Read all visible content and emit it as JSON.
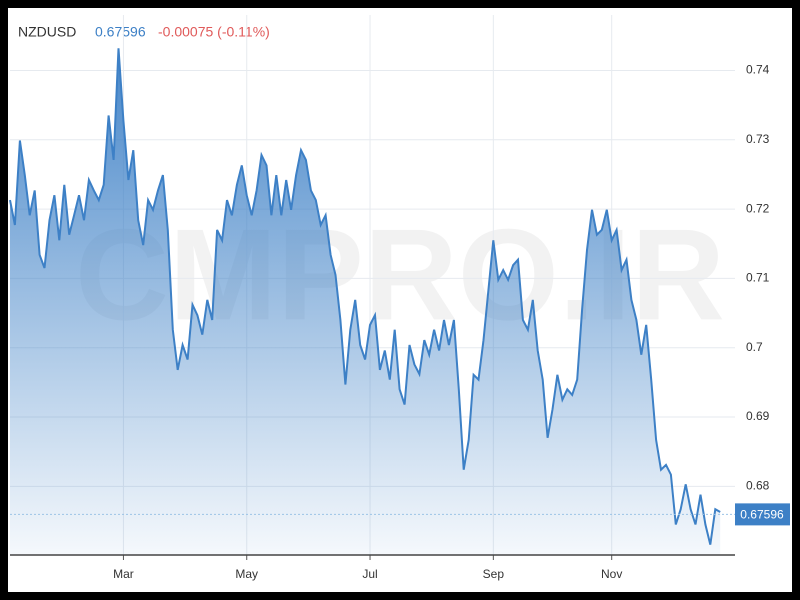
{
  "chart_data": {
    "type": "area",
    "symbol": "NZDUSD",
    "last_value": 0.67596,
    "change": "-0.00075 (-0.11%)",
    "watermark": "CMPRO.IR",
    "color": "#3d80c6",
    "grid": true,
    "x": [
      0,
      1,
      2,
      3,
      4,
      5,
      6,
      7,
      8,
      9,
      10,
      11,
      12,
      13,
      14,
      15,
      16,
      17,
      18,
      19,
      20,
      21,
      22,
      23,
      24,
      25,
      26,
      27,
      28,
      29,
      30,
      31,
      32,
      33,
      34,
      35,
      36,
      37,
      38,
      39,
      40,
      41,
      42,
      43,
      44,
      45,
      46,
      47,
      48,
      49,
      50,
      51,
      52,
      53,
      54,
      55,
      56,
      57,
      58,
      59,
      60,
      61,
      62,
      63,
      64,
      65,
      66,
      67,
      68,
      69,
      70,
      71,
      72,
      73,
      74,
      75,
      76,
      77,
      78,
      79,
      80,
      81,
      82,
      83,
      84,
      85,
      86,
      87,
      88,
      89,
      90,
      91,
      92,
      93,
      94,
      95,
      96,
      97,
      98,
      99,
      100,
      101,
      102,
      103,
      104,
      105,
      106,
      107,
      108,
      109,
      110,
      111,
      112,
      113,
      114,
      115,
      116,
      117,
      118,
      119,
      120,
      121,
      122,
      123,
      124,
      125,
      126,
      127,
      128,
      129,
      130,
      131,
      132,
      133,
      134,
      135,
      136,
      137,
      138,
      139,
      140,
      141,
      142,
      143,
      144
    ],
    "values": [
      0.7213,
      0.7177,
      0.7299,
      0.7249,
      0.7191,
      0.7227,
      0.7134,
      0.7115,
      0.7184,
      0.722,
      0.7155,
      0.7235,
      0.7163,
      0.7191,
      0.722,
      0.7184,
      0.7242,
      0.7227,
      0.7213,
      0.7235,
      0.7335,
      0.7271,
      0.7432,
      0.7328,
      0.7242,
      0.7285,
      0.7184,
      0.7148,
      0.7213,
      0.7199,
      0.7227,
      0.7249,
      0.717,
      0.7026,
      0.6968,
      0.7004,
      0.6983,
      0.7062,
      0.7047,
      0.7019,
      0.7069,
      0.704,
      0.717,
      0.7155,
      0.7213,
      0.7191,
      0.7235,
      0.7263,
      0.722,
      0.7191,
      0.7227,
      0.7278,
      0.7263,
      0.7191,
      0.7249,
      0.7191,
      0.7242,
      0.7199,
      0.7249,
      0.7285,
      0.7271,
      0.7227,
      0.7213,
      0.7177,
      0.7191,
      0.7134,
      0.7105,
      0.704,
      0.6947,
      0.7026,
      0.7069,
      0.7004,
      0.6983,
      0.7033,
      0.7047,
      0.6968,
      0.6996,
      0.6954,
      0.7026,
      0.694,
      0.6918,
      0.7004,
      0.6976,
      0.6962,
      0.7011,
      0.699,
      0.7026,
      0.6996,
      0.704,
      0.7004,
      0.704,
      0.694,
      0.6824,
      0.6867,
      0.6961,
      0.6954,
      0.7011,
      0.7083,
      0.7155,
      0.7098,
      0.7112,
      0.7098,
      0.7119,
      0.7127,
      0.704,
      0.7026,
      0.7069,
      0.6996,
      0.6954,
      0.687,
      0.6911,
      0.6961,
      0.6925,
      0.694,
      0.6932,
      0.6954,
      0.7055,
      0.7141,
      0.7199,
      0.7163,
      0.717,
      0.7199,
      0.7155,
      0.717,
      0.7112,
      0.7127,
      0.7069,
      0.704,
      0.699,
      0.7033,
      0.6954,
      0.6867,
      0.6824,
      0.6831,
      0.6817,
      0.6745,
      0.6767,
      0.6803,
      0.6767,
      0.6745,
      0.6788,
      0.6745,
      0.6716,
      0.6767,
      0.6763
    ],
    "xlim": [
      0,
      147
    ],
    "xticks": [
      {
        "value": 23,
        "label": "Mar"
      },
      {
        "value": 48,
        "label": "May"
      },
      {
        "value": 73,
        "label": "Jul"
      },
      {
        "value": 98,
        "label": "Sep"
      },
      {
        "value": 122,
        "label": "Nov"
      }
    ],
    "ylim": [
      0.6701,
      0.748
    ],
    "yticks": [
      0.74,
      0.73,
      0.72,
      0.71,
      0.7,
      0.69,
      0.68
    ]
  }
}
